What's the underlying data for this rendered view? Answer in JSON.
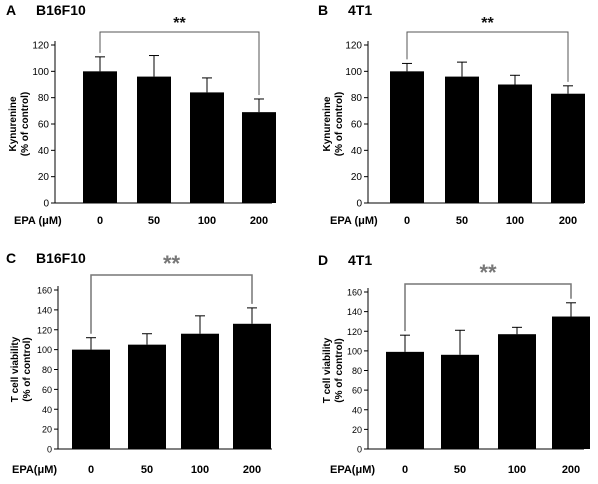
{
  "figure": {
    "panels": [
      {
        "letter": "A",
        "title": "B16F10",
        "ylabel": [
          "Kynurenine",
          "(% of control)"
        ],
        "xlabel_prefix": "EPA (μM)",
        "significance": "**",
        "star_color": "#111111"
      },
      {
        "letter": "B",
        "title": "4T1",
        "ylabel": [
          "Kynurenine",
          "(% of control)"
        ],
        "xlabel_prefix": "EPA (μM)",
        "significance": "**",
        "star_color": "#111111"
      },
      {
        "letter": "C",
        "title": "B16F10",
        "ylabel": [
          "T cell viability",
          "(% of control)"
        ],
        "xlabel_prefix": "EPA(μM)",
        "significance": "**",
        "star_color": "#777777"
      },
      {
        "letter": "D",
        "title": "4T1",
        "ylabel": [
          "T cell viability",
          "(% of control)"
        ],
        "xlabel_prefix": "EPA(μM)",
        "significance": "**",
        "star_color": "#777777"
      }
    ]
  },
  "chart_data": [
    {
      "type": "bar",
      "panel": "A",
      "title": "B16F10",
      "categories": [
        "0",
        "50",
        "100",
        "200"
      ],
      "values": [
        100,
        96,
        84,
        69
      ],
      "errors": [
        11,
        16,
        11,
        10
      ],
      "xlabel": "EPA (μM)",
      "ylabel": "Kynurenine (% of control)",
      "ylim": [
        0,
        120
      ],
      "yticks": [
        0,
        20,
        40,
        60,
        80,
        100,
        120
      ],
      "significance": {
        "from": "0",
        "to": "200",
        "label": "**"
      },
      "bar_color": "#000000",
      "grid": false,
      "legend": "none"
    },
    {
      "type": "bar",
      "panel": "B",
      "title": "4T1",
      "categories": [
        "0",
        "50",
        "100",
        "200"
      ],
      "values": [
        100,
        96,
        90,
        83
      ],
      "errors": [
        6,
        11,
        7,
        6
      ],
      "xlabel": "EPA (μM)",
      "ylabel": "Kynurenine (% of control)",
      "ylim": [
        0,
        120
      ],
      "yticks": [
        0,
        20,
        40,
        60,
        80,
        100,
        120
      ],
      "significance": {
        "from": "0",
        "to": "200",
        "label": "**"
      },
      "bar_color": "#000000",
      "grid": false,
      "legend": "none"
    },
    {
      "type": "bar",
      "panel": "C",
      "title": "B16F10",
      "categories": [
        "0",
        "50",
        "100",
        "200"
      ],
      "values": [
        100,
        105,
        116,
        126
      ],
      "errors": [
        12,
        11,
        18,
        16
      ],
      "xlabel": "EPA(μM)",
      "ylabel": "T cell viability (% of control)",
      "ylim": [
        0,
        160
      ],
      "yticks": [
        0,
        20,
        40,
        60,
        80,
        100,
        120,
        140,
        160
      ],
      "significance": {
        "from": "0",
        "to": "200",
        "label": "**"
      },
      "bar_color": "#000000",
      "grid": false,
      "legend": "none"
    },
    {
      "type": "bar",
      "panel": "D",
      "title": "4T1",
      "categories": [
        "0",
        "50",
        "100",
        "200"
      ],
      "values": [
        99,
        96,
        117,
        135
      ],
      "errors": [
        17,
        25,
        7,
        14
      ],
      "xlabel": "EPA(μM)",
      "ylabel": "T cell viability (% of control)",
      "ylim": [
        0,
        160
      ],
      "yticks": [
        0,
        20,
        40,
        60,
        80,
        100,
        120,
        140,
        160
      ],
      "significance": {
        "from": "0",
        "to": "200",
        "label": "**"
      },
      "bar_color": "#000000",
      "grid": false,
      "legend": "none"
    }
  ]
}
